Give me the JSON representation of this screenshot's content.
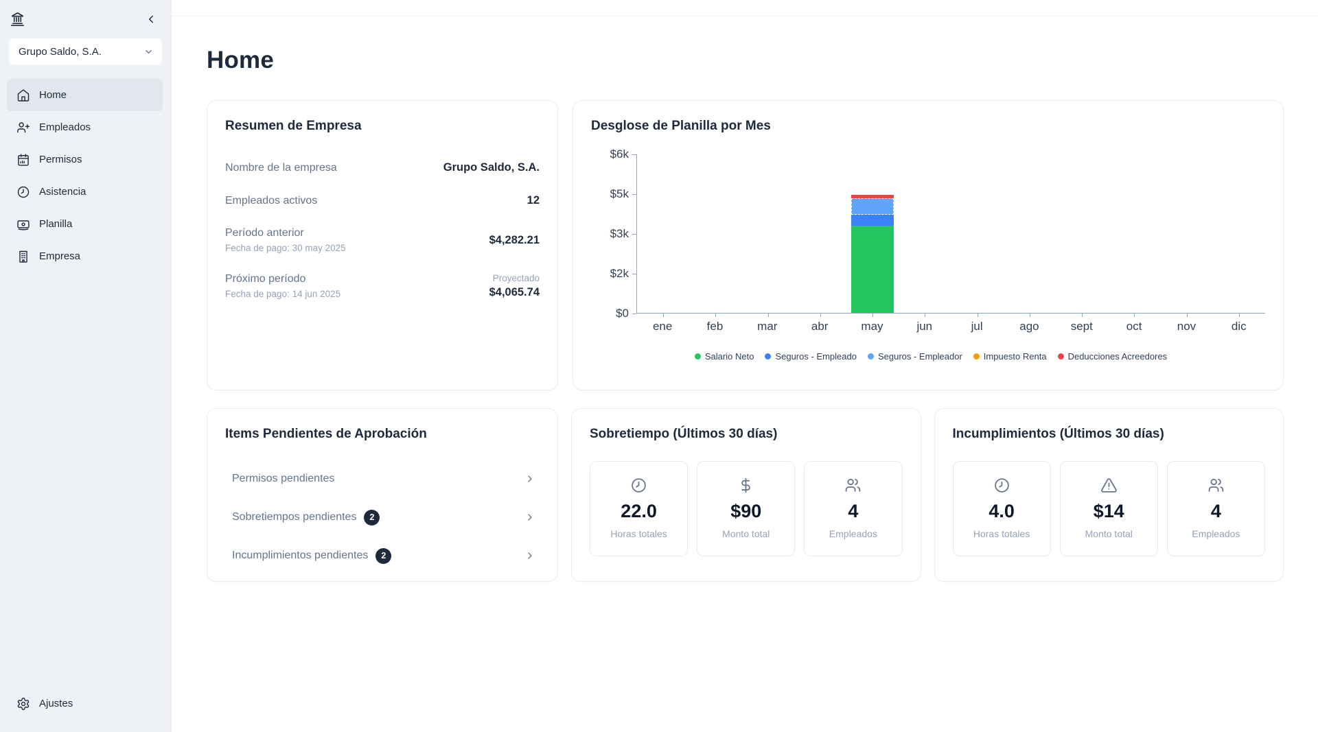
{
  "sidebar": {
    "company_selector": {
      "value": "Grupo Saldo, S.A."
    },
    "items": [
      {
        "label": "Home",
        "active": true
      },
      {
        "label": "Empleados",
        "active": false
      },
      {
        "label": "Permisos",
        "active": false
      },
      {
        "label": "Asistencia",
        "active": false
      },
      {
        "label": "Planilla",
        "active": false
      },
      {
        "label": "Empresa",
        "active": false
      }
    ],
    "footer_item": {
      "label": "Ajustes"
    }
  },
  "page": {
    "title": "Home"
  },
  "company_summary": {
    "title": "Resumen de Empresa",
    "company_name_label": "Nombre de la empresa",
    "company_name_value": "Grupo Saldo, S.A.",
    "active_employees_label": "Empleados activos",
    "active_employees_value": "12",
    "previous_period_label": "Período anterior",
    "previous_period_sublabel": "Fecha de pago: 30 may 2025",
    "previous_period_value": "$4,282.21",
    "next_period_label": "Próximo período",
    "next_period_sublabel": "Fecha de pago: 14 jun 2025",
    "next_period_tag": "Proyectado",
    "next_period_value": "$4,065.74"
  },
  "chart_data": {
    "type": "bar",
    "title": "Desglose de Planilla por Mes",
    "categories": [
      "ene",
      "feb",
      "mar",
      "abr",
      "may",
      "jun",
      "jul",
      "ago",
      "sept",
      "oct",
      "nov",
      "dic"
    ],
    "series": [
      {
        "name": "Salario Neto",
        "color": "#22c55e",
        "values": [
          0,
          0,
          0,
          0,
          3310,
          0,
          0,
          0,
          0,
          0,
          0,
          0
        ]
      },
      {
        "name": "Seguros - Empleado",
        "color": "#3b82f6",
        "values": [
          0,
          0,
          0,
          0,
          400,
          0,
          0,
          0,
          0,
          0,
          0,
          0
        ]
      },
      {
        "name": "Seguros - Empleador",
        "color": "#60a5fa",
        "pattern": "dotted",
        "values": [
          0,
          0,
          0,
          0,
          640,
          0,
          0,
          0,
          0,
          0,
          0,
          0
        ]
      },
      {
        "name": "Impuesto Renta",
        "color": "#f59e0b",
        "values": [
          0,
          0,
          0,
          0,
          0,
          0,
          0,
          0,
          0,
          0,
          0,
          0
        ]
      },
      {
        "name": "Deducciones Acreedores",
        "color": "#ef4444",
        "values": [
          0,
          0,
          0,
          0,
          110,
          0,
          0,
          0,
          0,
          0,
          0,
          0
        ]
      }
    ],
    "y_axis": {
      "max": 6000,
      "tick_labels": [
        "$6k",
        "$5k",
        "$3k",
        "$2k",
        "$0"
      ]
    },
    "legend_position": "bottom",
    "grid": false
  },
  "pending_items": {
    "title": "Items Pendientes de Aprobación",
    "rows": [
      {
        "label": "Permisos pendientes",
        "badge": ""
      },
      {
        "label": "Sobretiempos pendientes",
        "badge": "2"
      },
      {
        "label": "Incumplimientos pendientes",
        "badge": "2"
      }
    ]
  },
  "overtime": {
    "title": "Sobretiempo (Últimos 30 días)",
    "stats": [
      {
        "value": "22.0",
        "label": "Horas totales"
      },
      {
        "value": "$90",
        "label": "Monto total"
      },
      {
        "value": "4",
        "label": "Empleados"
      }
    ]
  },
  "noncompliance": {
    "title": "Incumplimientos (Últimos 30 días)",
    "stats": [
      {
        "value": "4.0",
        "label": "Horas totales"
      },
      {
        "value": "$14",
        "label": "Monto total"
      },
      {
        "value": "4",
        "label": "Empleados"
      }
    ]
  }
}
